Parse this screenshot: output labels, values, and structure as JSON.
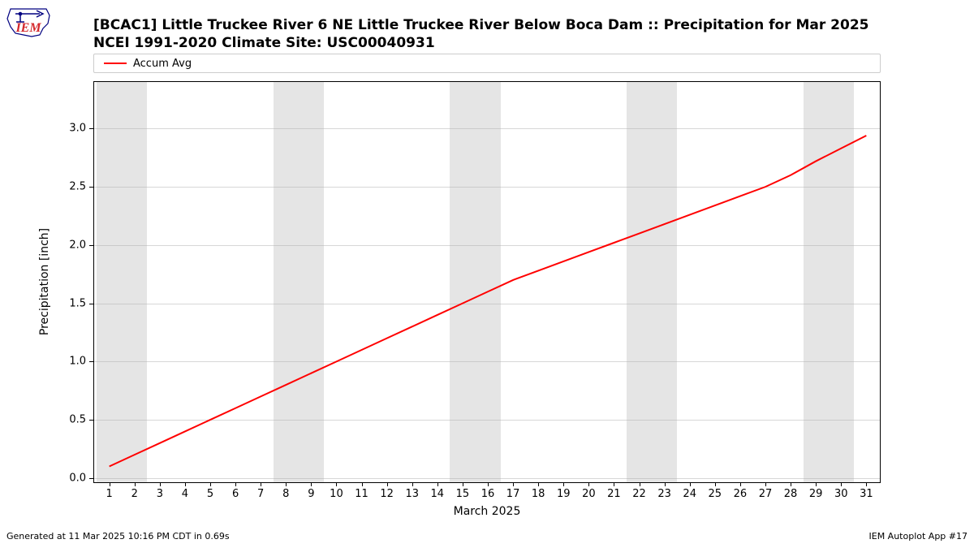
{
  "logo": {
    "text": "IEM",
    "text_color": "#d4282b",
    "outline_color": "#000080"
  },
  "title": {
    "line1": "[BCAC1] Little Truckee River 6 NE Little Truckee River Below Boca Dam :: Precipitation for Mar 2025",
    "line2": "NCEI 1991-2020 Climate Site: USC00040931",
    "fontsize": 17,
    "fontweight": "bold",
    "color": "#000000"
  },
  "legend": {
    "items": [
      {
        "label": "Accum Avg",
        "color": "#ff0000"
      }
    ],
    "fontsize": 13
  },
  "chart": {
    "type": "line",
    "background_color": "#ffffff",
    "weekend_band_color": "#e5e5e5",
    "grid_color": "#b0b0b0",
    "border_color": "#000000",
    "xlabel": "March 2025",
    "ylabel": "Precipitation [inch]",
    "label_fontsize": 14,
    "tick_fontsize": 13,
    "xlim": [
      0.4,
      31.6
    ],
    "ylim": [
      -0.05,
      3.4
    ],
    "yticks": [
      0.0,
      0.5,
      1.0,
      1.5,
      2.0,
      2.5,
      3.0
    ],
    "xticks": [
      1,
      2,
      3,
      4,
      5,
      6,
      7,
      8,
      9,
      10,
      11,
      12,
      13,
      14,
      15,
      16,
      17,
      18,
      19,
      20,
      21,
      22,
      23,
      24,
      25,
      26,
      27,
      28,
      29,
      30,
      31
    ],
    "weekend_days": [
      [
        1,
        2
      ],
      [
        8,
        9
      ],
      [
        15,
        16
      ],
      [
        22,
        23
      ],
      [
        29,
        30
      ]
    ],
    "series": {
      "color": "#ff0000",
      "line_width": 2,
      "x": [
        1,
        2,
        3,
        4,
        5,
        6,
        7,
        8,
        9,
        10,
        11,
        12,
        13,
        14,
        15,
        16,
        17,
        18,
        19,
        20,
        21,
        22,
        23,
        24,
        25,
        26,
        27,
        28,
        29,
        30,
        31
      ],
      "y": [
        0.1,
        0.2,
        0.3,
        0.4,
        0.5,
        0.6,
        0.7,
        0.8,
        0.9,
        1.0,
        1.1,
        1.2,
        1.3,
        1.4,
        1.5,
        1.6,
        1.7,
        1.78,
        1.86,
        1.94,
        2.02,
        2.1,
        2.18,
        2.26,
        2.34,
        2.42,
        2.5,
        2.6,
        2.72,
        2.83,
        2.94
      ]
    }
  },
  "footer": {
    "left": "Generated at 11 Mar 2025 10:16 PM CDT in 0.69s",
    "right": "IEM Autoplot App #17",
    "fontsize": 11
  }
}
